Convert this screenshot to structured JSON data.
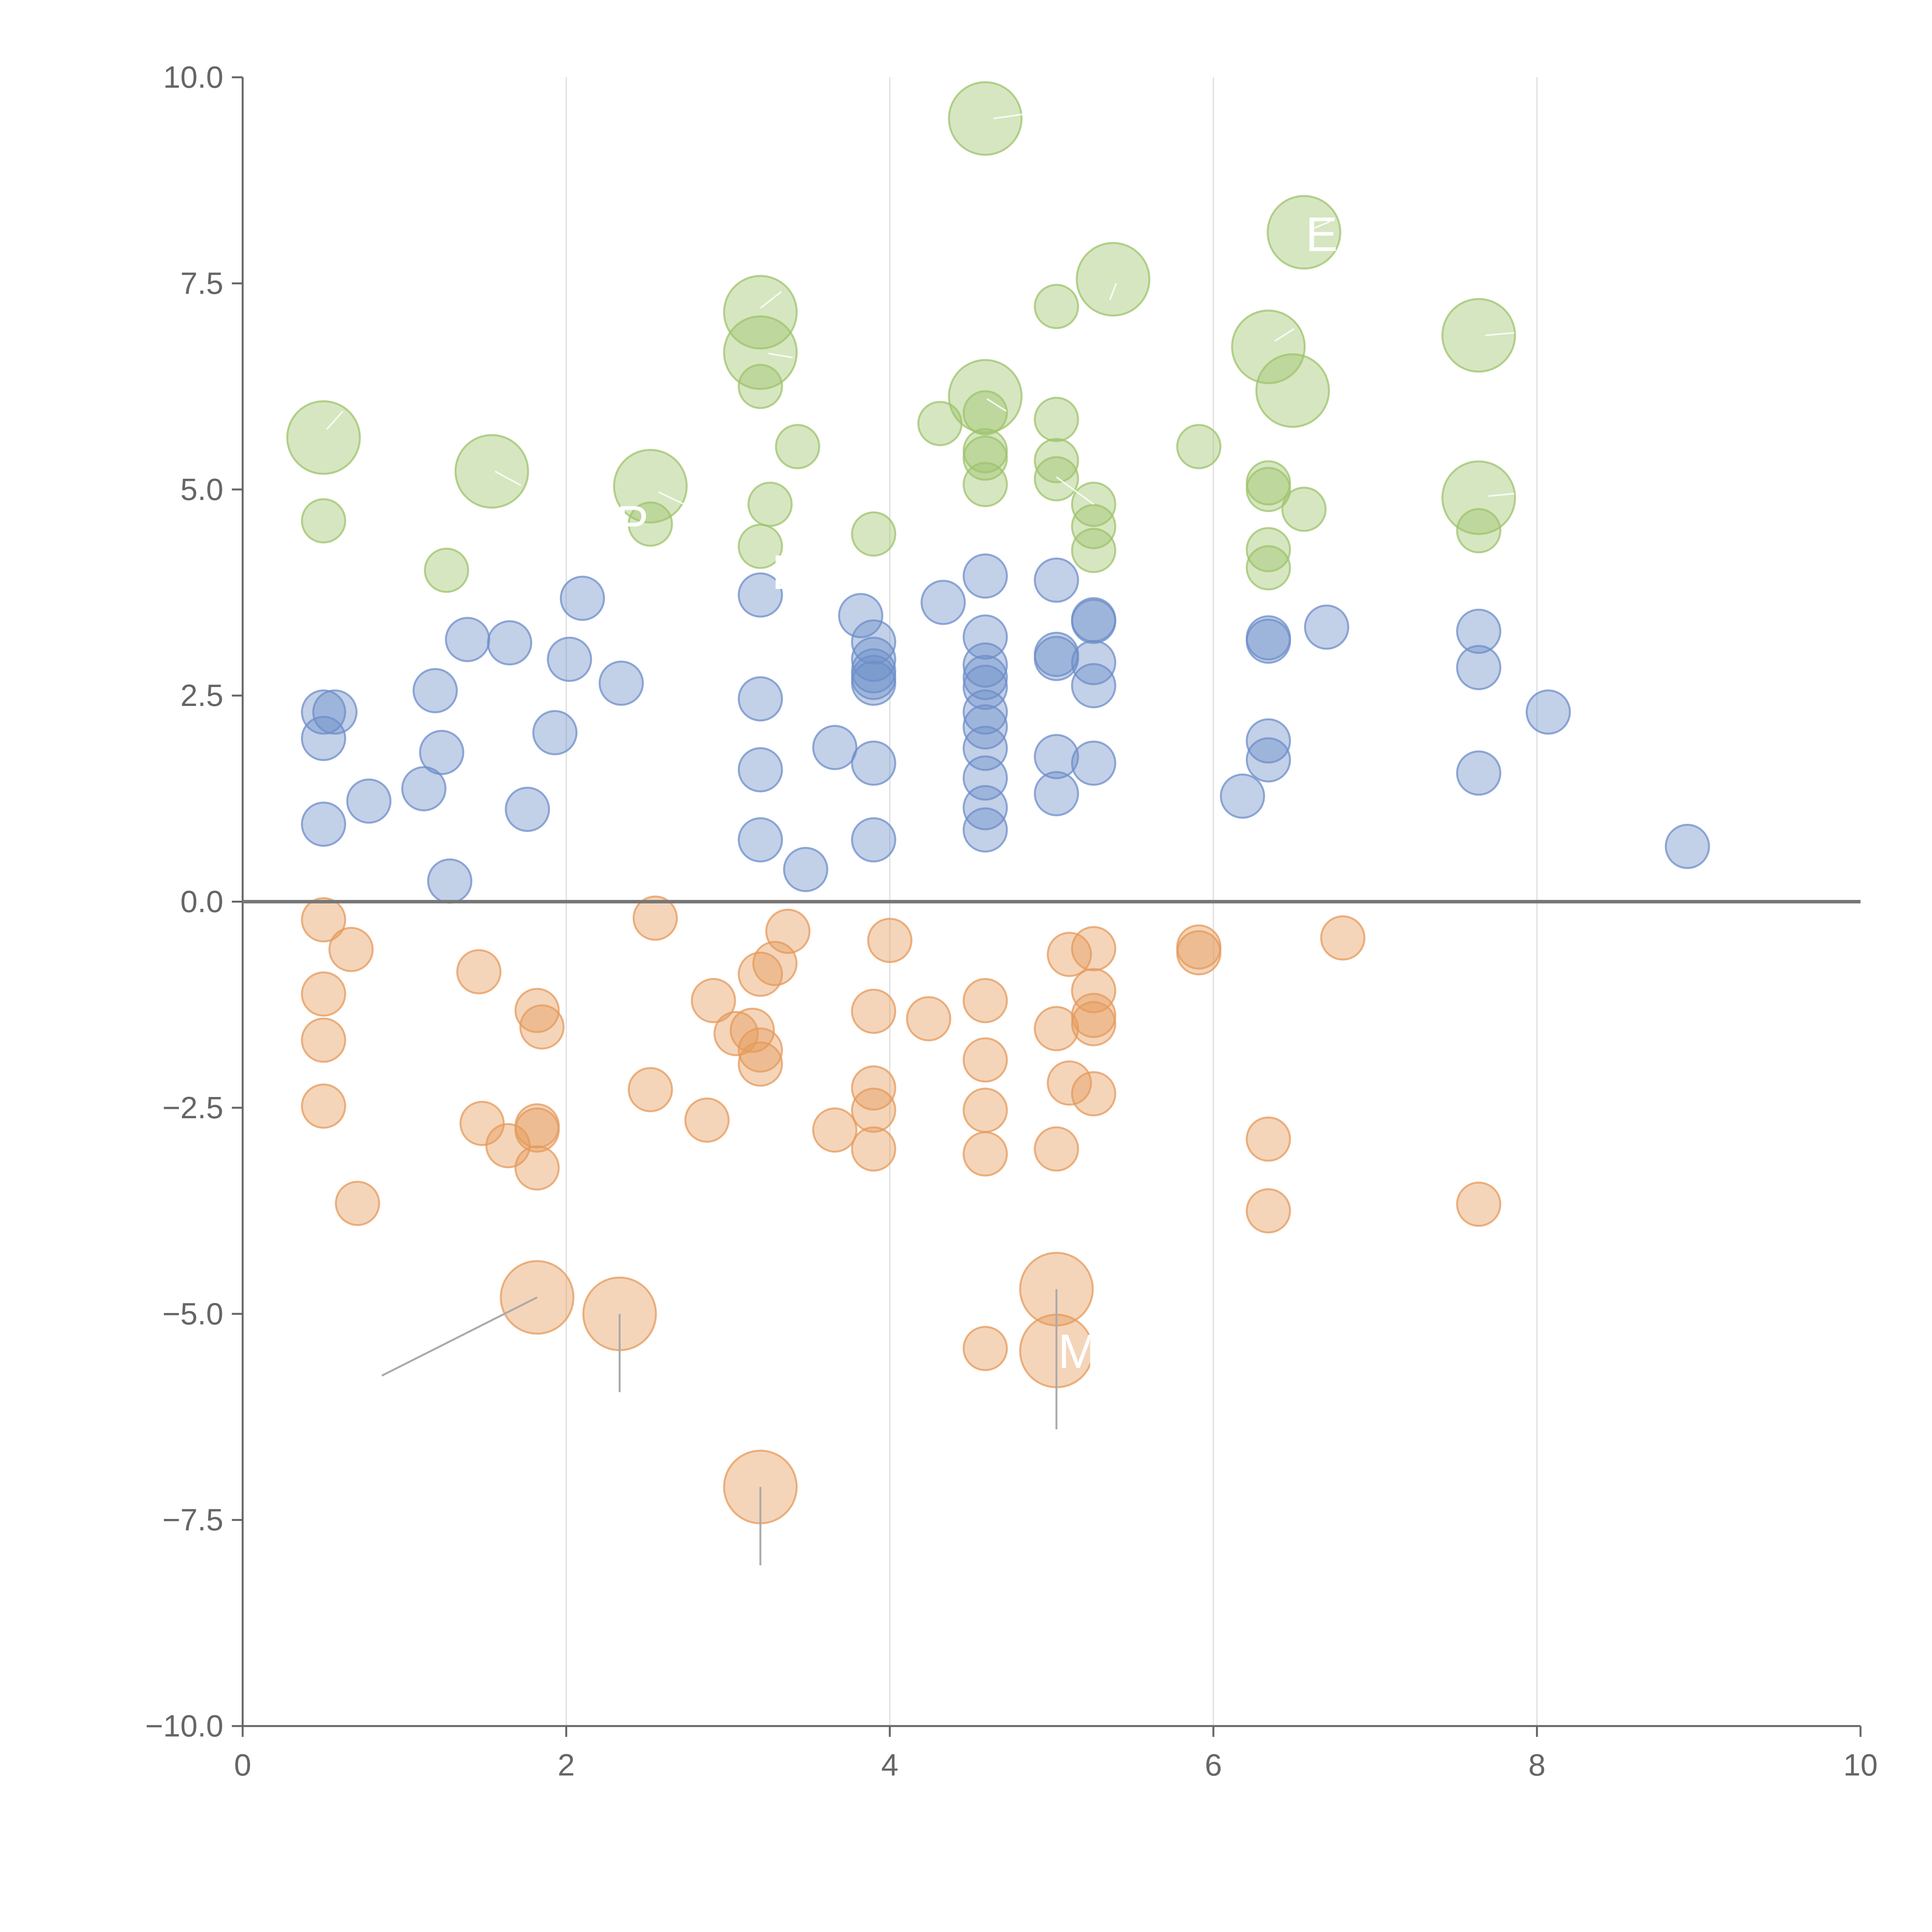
{
  "chart_data": {
    "type": "scatter",
    "title": "",
    "xlabel": "",
    "ylabel": "",
    "xlim": [
      0,
      10
    ],
    "ylim": [
      -10,
      10
    ],
    "grid": "vertical",
    "x_ticks": [
      0,
      2,
      4,
      6,
      8,
      10
    ],
    "x_tick_labels": [
      "0",
      "2",
      "4",
      "6",
      "8",
      "10"
    ],
    "y_ticks": [
      10,
      7.5,
      5,
      2.5,
      0,
      -2.5,
      -5,
      -7.5,
      -10
    ],
    "y_tick_labels": [
      "10.0",
      "7.5",
      "5.0",
      "2.5",
      "0.0",
      "−2.5",
      "−5.0",
      "−7.5",
      "−10.0"
    ],
    "colors": {
      "green": "#9dc36b",
      "blue": "#6d8ec9",
      "orange": "#e59a5b"
    },
    "series": [
      {
        "name": "green",
        "color": "#9dc36b",
        "points": [
          [
            4.59,
            9.5,
            2
          ],
          [
            6.56,
            8.12,
            2
          ],
          [
            5.38,
            7.55,
            2
          ],
          [
            3.2,
            7.15,
            2
          ],
          [
            5.03,
            7.22,
            1
          ],
          [
            7.64,
            6.87,
            2
          ],
          [
            6.34,
            6.73,
            2
          ],
          [
            3.2,
            6.66,
            2
          ],
          [
            6.49,
            6.2,
            2
          ],
          [
            4.59,
            6.13,
            2
          ],
          [
            3.2,
            6.25,
            1
          ],
          [
            4.59,
            5.93,
            1
          ],
          [
            0.5,
            5.63,
            2
          ],
          [
            4.31,
            5.8,
            1
          ],
          [
            5.03,
            5.85,
            1
          ],
          [
            3.43,
            5.52,
            1
          ],
          [
            5.91,
            5.52,
            1
          ],
          [
            4.59,
            5.47,
            1
          ],
          [
            4.59,
            5.38,
            1
          ],
          [
            5.03,
            5.35,
            1
          ],
          [
            1.54,
            5.22,
            2
          ],
          [
            5.03,
            5.13,
            1
          ],
          [
            4.59,
            5.06,
            1
          ],
          [
            6.34,
            5.08,
            1
          ],
          [
            6.34,
            5.0,
            1
          ],
          [
            2.52,
            5.04,
            2
          ],
          [
            7.64,
            4.9,
            2
          ],
          [
            3.26,
            4.82,
            1
          ],
          [
            5.26,
            4.82,
            1
          ],
          [
            6.56,
            4.76,
            1
          ],
          [
            0.5,
            4.62,
            1
          ],
          [
            2.52,
            4.58,
            1
          ],
          [
            5.26,
            4.55,
            1
          ],
          [
            7.64,
            4.5,
            1
          ],
          [
            3.9,
            4.46,
            1
          ],
          [
            3.2,
            4.31,
            1
          ],
          [
            6.34,
            4.27,
            1
          ],
          [
            5.26,
            4.26,
            1
          ],
          [
            6.34,
            4.05,
            1
          ],
          [
            1.26,
            4.02,
            1
          ]
        ]
      },
      {
        "name": "blue",
        "color": "#6d8ec9",
        "points": [
          [
            4.59,
            3.95,
            1
          ],
          [
            5.03,
            3.9,
            1
          ],
          [
            3.2,
            3.72,
            1
          ],
          [
            2.1,
            3.68,
            1
          ],
          [
            4.33,
            3.63,
            1
          ],
          [
            3.82,
            3.47,
            1
          ],
          [
            5.26,
            3.42,
            1
          ],
          [
            5.26,
            3.4,
            1
          ],
          [
            6.7,
            3.33,
            1
          ],
          [
            7.64,
            3.28,
            1
          ],
          [
            4.59,
            3.21,
            1
          ],
          [
            1.39,
            3.18,
            1
          ],
          [
            6.34,
            3.2,
            1
          ],
          [
            6.34,
            3.16,
            1
          ],
          [
            1.65,
            3.14,
            1
          ],
          [
            3.9,
            3.15,
            1
          ],
          [
            5.03,
            3.0,
            1
          ],
          [
            5.03,
            2.95,
            1
          ],
          [
            2.02,
            2.94,
            1
          ],
          [
            3.9,
            2.94,
            1
          ],
          [
            5.26,
            2.9,
            1
          ],
          [
            4.59,
            2.87,
            1
          ],
          [
            3.9,
            2.8,
            1
          ],
          [
            7.64,
            2.84,
            1
          ],
          [
            3.9,
            2.72,
            1
          ],
          [
            4.59,
            2.72,
            1
          ],
          [
            3.9,
            2.65,
            1
          ],
          [
            2.34,
            2.65,
            1
          ],
          [
            5.26,
            2.62,
            1
          ],
          [
            4.59,
            2.6,
            1
          ],
          [
            1.19,
            2.56,
            1
          ],
          [
            3.2,
            2.46,
            1
          ],
          [
            0.5,
            2.3,
            1
          ],
          [
            0.57,
            2.3,
            1
          ],
          [
            4.59,
            2.3,
            1
          ],
          [
            8.07,
            2.3,
            1
          ],
          [
            4.59,
            2.12,
            1
          ],
          [
            1.93,
            2.05,
            1
          ],
          [
            0.5,
            1.98,
            1
          ],
          [
            6.34,
            1.95,
            1
          ],
          [
            3.66,
            1.87,
            1
          ],
          [
            4.59,
            1.86,
            1
          ],
          [
            1.23,
            1.81,
            1
          ],
          [
            5.03,
            1.76,
            1
          ],
          [
            6.34,
            1.72,
            1
          ],
          [
            3.9,
            1.68,
            1
          ],
          [
            5.26,
            1.68,
            1
          ],
          [
            3.2,
            1.6,
            1
          ],
          [
            7.64,
            1.56,
            1
          ],
          [
            4.59,
            1.5,
            1
          ],
          [
            1.12,
            1.37,
            1
          ],
          [
            5.03,
            1.31,
            1
          ],
          [
            6.18,
            1.28,
            1
          ],
          [
            0.78,
            1.22,
            1
          ],
          [
            4.59,
            1.14,
            1
          ],
          [
            1.76,
            1.12,
            1
          ],
          [
            0.5,
            0.94,
            1
          ],
          [
            4.59,
            0.87,
            1
          ],
          [
            3.2,
            0.75,
            1
          ],
          [
            3.9,
            0.75,
            1
          ],
          [
            8.93,
            0.67,
            1
          ],
          [
            3.48,
            0.39,
            1
          ],
          [
            1.28,
            0.25,
            1
          ]
        ]
      },
      {
        "name": "orange",
        "color": "#e59a5b",
        "points": [
          [
            0.5,
            -0.22,
            1
          ],
          [
            2.55,
            -0.2,
            1
          ],
          [
            3.37,
            -0.36,
            1
          ],
          [
            4.0,
            -0.47,
            1
          ],
          [
            6.8,
            -0.44,
            1
          ],
          [
            5.91,
            -0.55,
            1
          ],
          [
            5.91,
            -0.62,
            1
          ],
          [
            5.26,
            -0.57,
            1
          ],
          [
            0.67,
            -0.58,
            1
          ],
          [
            5.11,
            -0.64,
            1
          ],
          [
            3.29,
            -0.75,
            1
          ],
          [
            1.46,
            -0.85,
            1
          ],
          [
            3.2,
            -0.88,
            1
          ],
          [
            5.26,
            -1.08,
            1
          ],
          [
            0.5,
            -1.12,
            1
          ],
          [
            4.59,
            -1.2,
            1
          ],
          [
            2.91,
            -1.2,
            1
          ],
          [
            1.82,
            -1.32,
            1
          ],
          [
            3.9,
            -1.33,
            1
          ],
          [
            5.26,
            -1.38,
            1
          ],
          [
            4.24,
            -1.42,
            1
          ],
          [
            5.26,
            -1.48,
            1
          ],
          [
            1.85,
            -1.52,
            1
          ],
          [
            5.03,
            -1.54,
            1
          ],
          [
            3.15,
            -1.56,
            1
          ],
          [
            3.05,
            -1.6,
            1
          ],
          [
            0.5,
            -1.68,
            1
          ],
          [
            3.2,
            -1.8,
            1
          ],
          [
            3.2,
            -1.97,
            1
          ],
          [
            4.59,
            -1.92,
            1
          ],
          [
            5.11,
            -2.2,
            1
          ],
          [
            3.9,
            -2.26,
            1
          ],
          [
            2.52,
            -2.28,
            1
          ],
          [
            5.26,
            -2.33,
            1
          ],
          [
            0.5,
            -2.48,
            1
          ],
          [
            3.9,
            -2.53,
            1
          ],
          [
            4.59,
            -2.53,
            1
          ],
          [
            2.87,
            -2.65,
            1
          ],
          [
            1.48,
            -2.69,
            1
          ],
          [
            1.82,
            -2.72,
            1
          ],
          [
            1.82,
            -2.77,
            1
          ],
          [
            3.66,
            -2.77,
            1
          ],
          [
            6.34,
            -2.88,
            1
          ],
          [
            1.64,
            -2.96,
            1
          ],
          [
            3.9,
            -3.0,
            1
          ],
          [
            5.03,
            -3.0,
            1
          ],
          [
            4.59,
            -3.06,
            1
          ],
          [
            1.82,
            -3.23,
            1
          ],
          [
            0.71,
            -3.66,
            1
          ],
          [
            7.64,
            -3.67,
            1
          ],
          [
            6.34,
            -3.75,
            1
          ],
          [
            5.03,
            -4.7,
            2
          ],
          [
            1.82,
            -4.8,
            2
          ],
          [
            2.33,
            -5.0,
            2
          ],
          [
            4.59,
            -5.42,
            1
          ],
          [
            5.03,
            -5.45,
            2
          ],
          [
            3.2,
            -7.1,
            2
          ]
        ]
      }
    ],
    "leader_lines": [
      {
        "color": "dark",
        "from": [
          1.82,
          -4.8
        ],
        "to": [
          0.86,
          -5.75
        ]
      },
      {
        "color": "dark",
        "from": [
          2.33,
          -5.0
        ],
        "to": [
          2.33,
          -5.95
        ]
      },
      {
        "color": "dark",
        "from": [
          5.03,
          -4.7
        ],
        "to": [
          5.03,
          -6.4
        ]
      },
      {
        "color": "dark",
        "from": [
          3.2,
          -7.1
        ],
        "to": [
          3.2,
          -8.05
        ]
      },
      {
        "color": "light",
        "from": [
          4.64,
          9.5
        ],
        "to": [
          4.82,
          9.55
        ]
      },
      {
        "color": "light",
        "from": [
          6.6,
          8.15
        ],
        "to": [
          6.72,
          8.25
        ]
      },
      {
        "color": "light",
        "from": [
          5.36,
          7.3
        ],
        "to": [
          5.4,
          7.5
        ]
      },
      {
        "color": "light",
        "from": [
          3.2,
          7.2
        ],
        "to": [
          3.33,
          7.4
        ]
      },
      {
        "color": "light",
        "from": [
          7.68,
          6.87
        ],
        "to": [
          7.86,
          6.9
        ]
      },
      {
        "color": "light",
        "from": [
          6.38,
          6.8
        ],
        "to": [
          6.5,
          6.95
        ]
      },
      {
        "color": "light",
        "from": [
          3.25,
          6.65
        ],
        "to": [
          3.4,
          6.6
        ]
      },
      {
        "color": "light",
        "from": [
          4.6,
          6.1
        ],
        "to": [
          4.72,
          5.95
        ]
      },
      {
        "color": "light",
        "from": [
          0.52,
          5.73
        ],
        "to": [
          0.62,
          5.95
        ]
      },
      {
        "color": "light",
        "from": [
          1.56,
          5.22
        ],
        "to": [
          1.72,
          5.05
        ]
      },
      {
        "color": "light",
        "from": [
          2.57,
          4.97
        ],
        "to": [
          2.75,
          4.8
        ]
      },
      {
        "color": "light",
        "from": [
          7.7,
          4.92
        ],
        "to": [
          7.86,
          4.95
        ]
      },
      {
        "color": "light",
        "from": [
          5.03,
          5.15
        ],
        "to": [
          5.26,
          4.82
        ]
      }
    ],
    "point_labels": [
      {
        "text": "M",
        "x": 5.03,
        "y": -5.45
      },
      {
        "text": "E",
        "x": 6.56,
        "y": 8.1
      },
      {
        "text": "B",
        "x": 3.26,
        "y": 4.0
      },
      {
        "text": "P",
        "x": 2.3,
        "y": 4.6
      }
    ]
  }
}
